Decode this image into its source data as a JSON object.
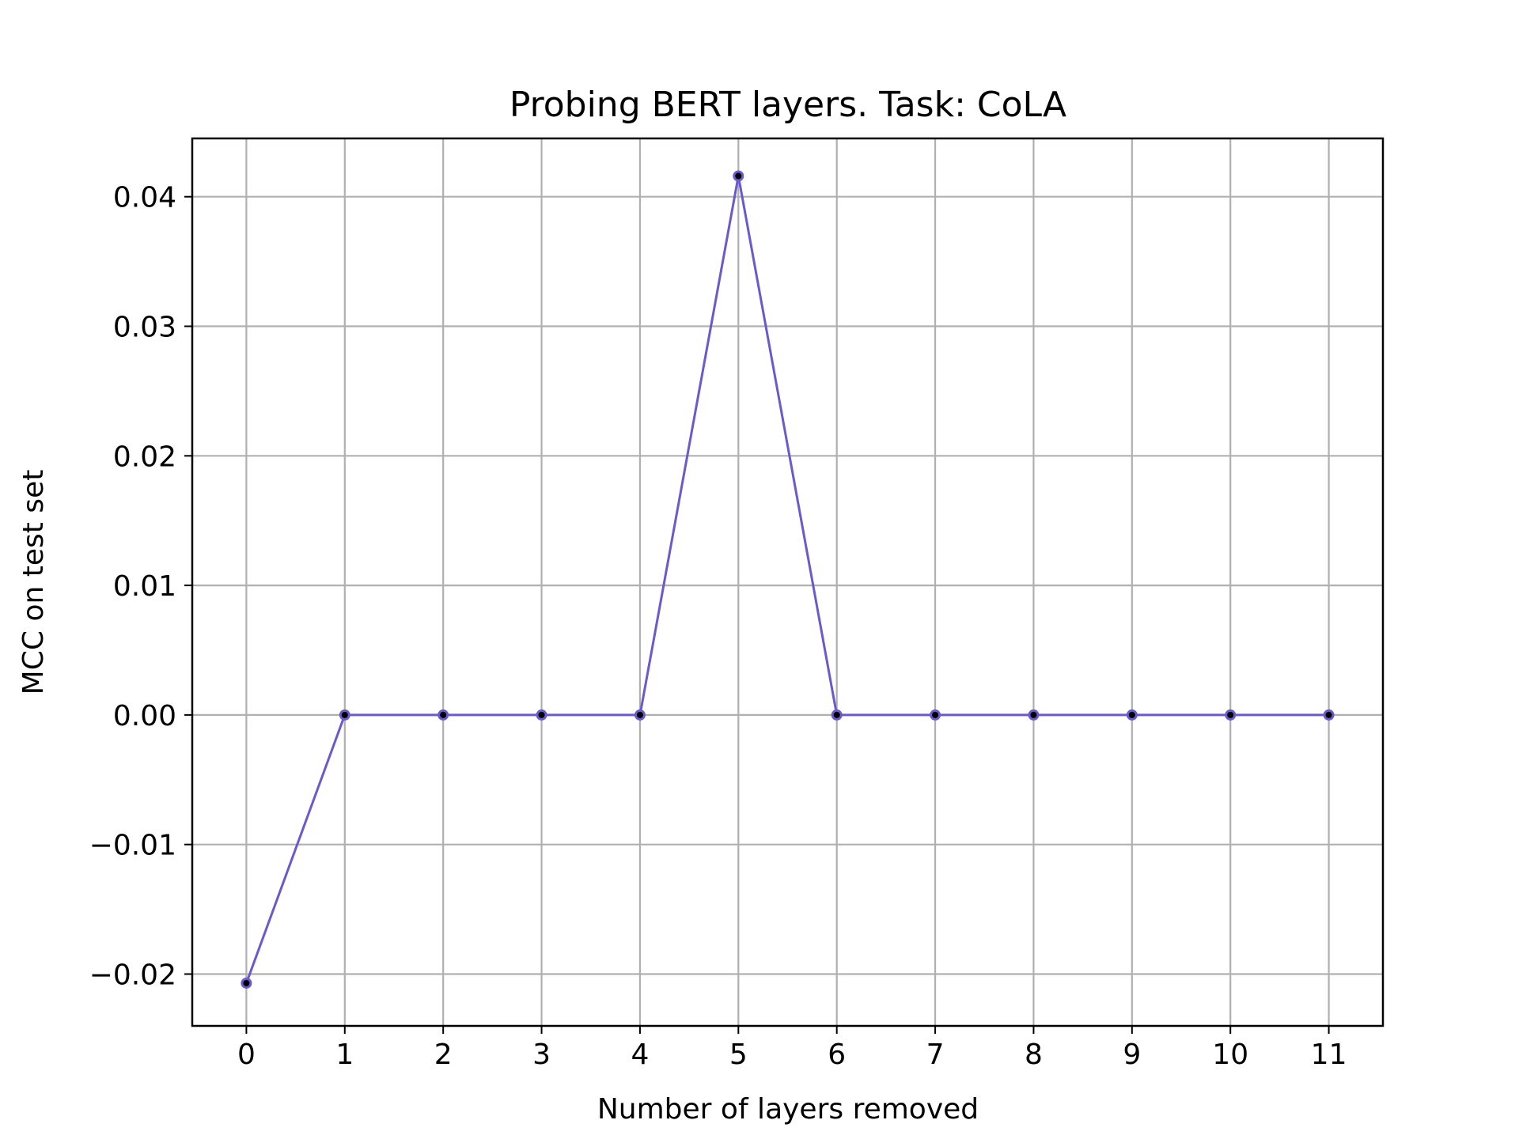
{
  "chart_data": {
    "type": "line",
    "title": "Probing BERT layers. Task: CoLA",
    "xlabel": "Number of layers removed",
    "ylabel": "MCC on test set",
    "x": [
      0,
      1,
      2,
      3,
      4,
      5,
      6,
      7,
      8,
      9,
      10,
      11
    ],
    "series": [
      {
        "values": [
          -0.0207,
          0.0,
          0.0,
          0.0,
          0.0,
          0.0416,
          0.0,
          0.0,
          0.0,
          0.0,
          0.0,
          0.0
        ],
        "color": "#6a5acd",
        "marker_color": "#000000"
      }
    ],
    "xlim": [
      -0.55,
      11.55
    ],
    "ylim": [
      -0.024,
      0.0445
    ],
    "x_ticks": [
      "0",
      "1",
      "2",
      "3",
      "4",
      "5",
      "6",
      "7",
      "8",
      "9",
      "10",
      "11"
    ],
    "y_ticks": [
      -0.02,
      -0.01,
      0.0,
      0.01,
      0.02,
      0.03,
      0.04
    ],
    "y_tick_labels": [
      "−0.02",
      "−0.01",
      "0.00",
      "0.01",
      "0.02",
      "0.03",
      "0.04"
    ],
    "grid": true,
    "grid_color": "#b0b0b0"
  }
}
